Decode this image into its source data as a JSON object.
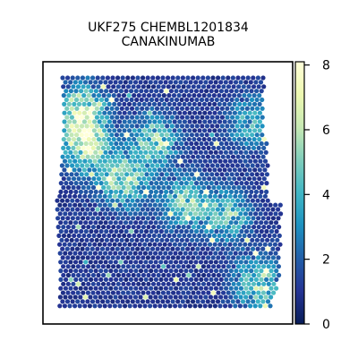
{
  "chart_data": {
    "type": "heatmap",
    "title_lines": [
      "UKF275 CHEMBL1201834",
      "CANAKINUMAB"
    ],
    "xlabel": "",
    "ylabel": "",
    "colorbar": {
      "min": 0,
      "max": 8.1,
      "ticks": [
        "0",
        "2",
        "4",
        "6",
        "8"
      ],
      "colormap": "YlGnBu",
      "stops": [
        "#ffffd9",
        "#edf8b1",
        "#c7e9b4",
        "#7fcdbb",
        "#41b6c4",
        "#1d91c0",
        "#225ea8",
        "#253494",
        "#081d58"
      ]
    },
    "hotspots": [
      {
        "x": 0.1,
        "y": 0.15,
        "value": 5.5
      },
      {
        "x": 0.12,
        "y": 0.3,
        "value": 5.0
      },
      {
        "x": 0.3,
        "y": 0.45,
        "value": 4.5
      },
      {
        "x": 0.45,
        "y": 0.28,
        "value": 4.2
      },
      {
        "x": 0.6,
        "y": 0.55,
        "value": 3.8
      },
      {
        "x": 0.8,
        "y": 0.6,
        "value": 3.5
      },
      {
        "x": 0.92,
        "y": 0.2,
        "value": 3.0
      },
      {
        "x": 0.95,
        "y": 0.9,
        "value": 4.0
      }
    ],
    "background_value": 0.6
  }
}
